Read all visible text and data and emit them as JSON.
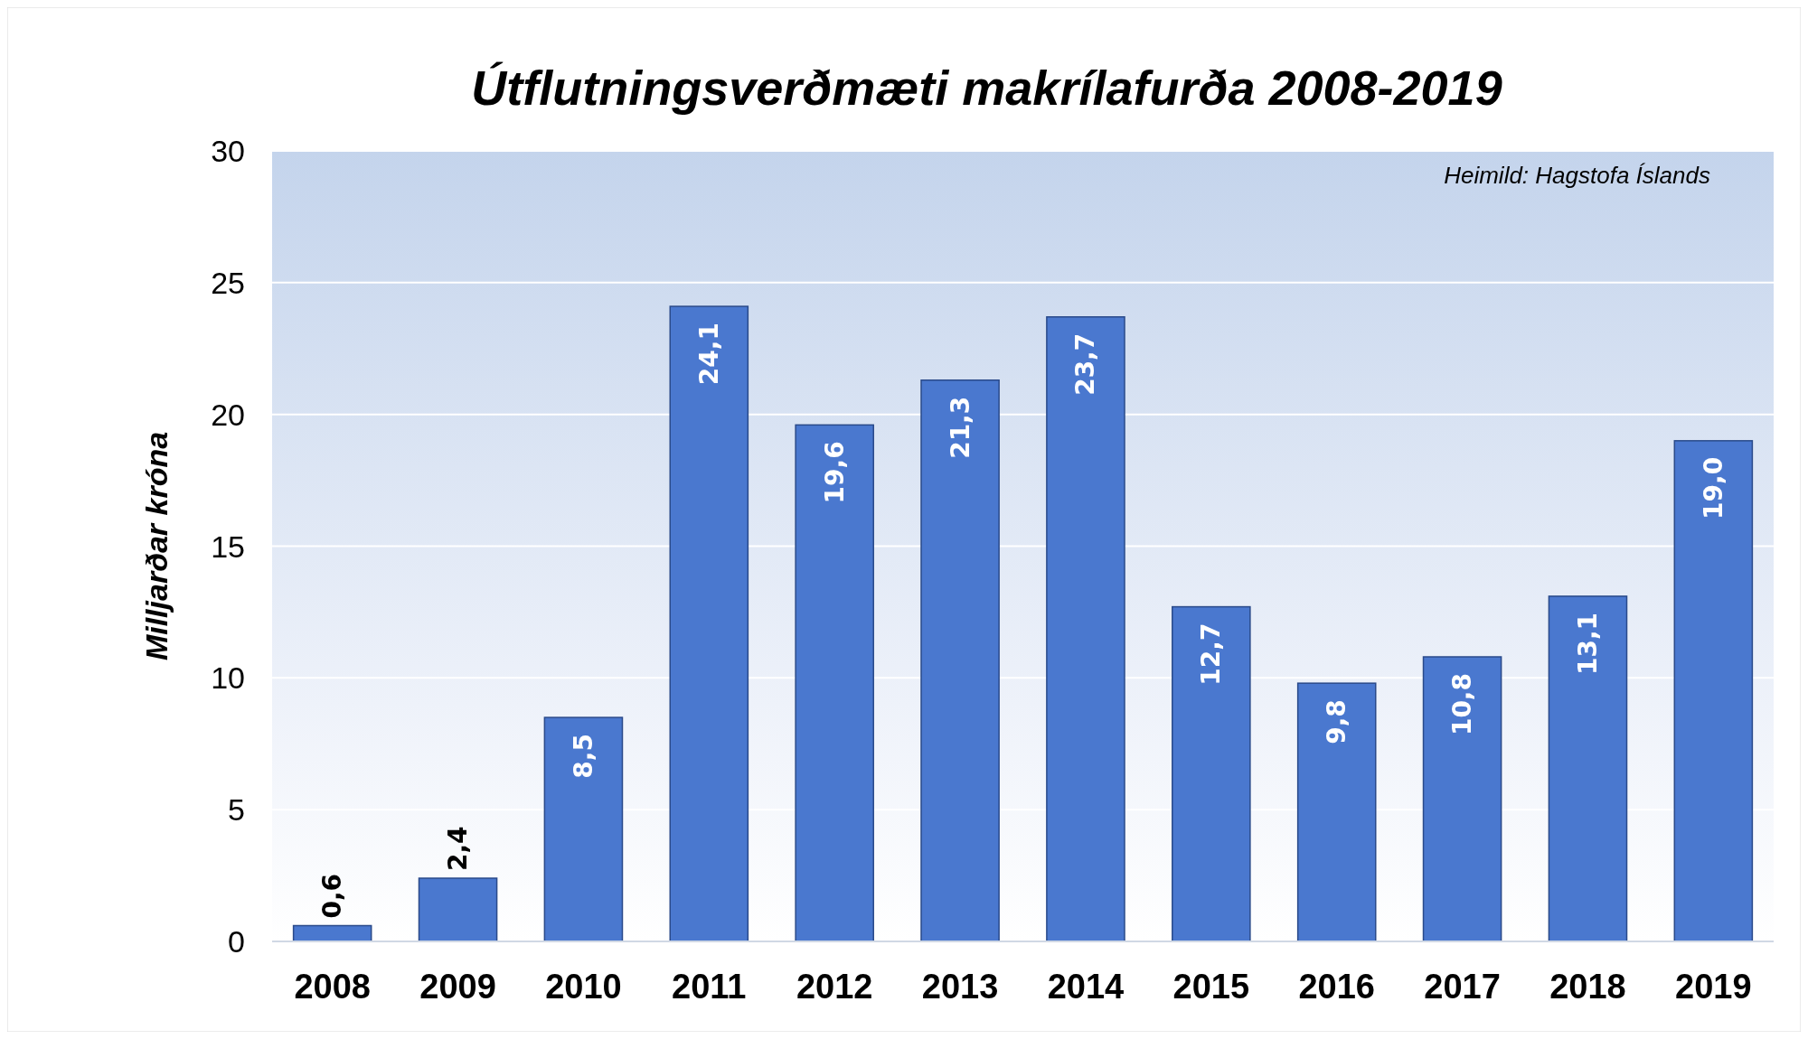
{
  "chart_data": {
    "type": "bar",
    "title": "Útflutningsverðmæti makrílafurða 2008-2019",
    "ylabel": "Milljarðar króna",
    "categories": [
      "2008",
      "2009",
      "2010",
      "2011",
      "2012",
      "2013",
      "2014",
      "2015",
      "2016",
      "2017",
      "2018",
      "2019"
    ],
    "values": [
      0.6,
      2.4,
      8.5,
      24.1,
      19.6,
      21.3,
      23.7,
      12.7,
      9.8,
      10.8,
      13.1,
      19.0
    ],
    "value_labels": [
      "0,6",
      "2,4",
      "8,5",
      "24,1",
      "19,6",
      "21,3",
      "23,7",
      "12,7",
      "9,8",
      "10,8",
      "13,1",
      "19,0"
    ],
    "color": "#4a78cf",
    "ylim": [
      0,
      30
    ],
    "yticks": [
      0,
      5,
      10,
      15,
      20,
      25,
      30
    ],
    "grid": "y",
    "annotations": [
      "Heimild: Hagstofa Íslands"
    ]
  }
}
